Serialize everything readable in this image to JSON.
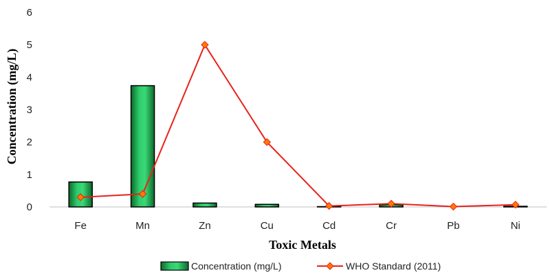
{
  "chart_data": {
    "type": "bar",
    "title": "",
    "xlabel": "Toxic  Metals",
    "ylabel": "Concentration (mg/L)",
    "categories": [
      "Fe",
      "Mn",
      "Zn",
      "Cu",
      "Cd",
      "Cr",
      "Pb",
      "Ni"
    ],
    "ylim": [
      0,
      6
    ],
    "yticks": [
      0,
      1,
      2,
      3,
      4,
      5,
      6
    ],
    "series": [
      {
        "name": "Concentration (mg/L)",
        "type": "bar",
        "color": "#1faa4f",
        "values": [
          0.77,
          3.74,
          0.12,
          0.08,
          0.01,
          0.07,
          0.0,
          0.02
        ]
      },
      {
        "name": "WHO Standard (2011)",
        "type": "line",
        "color": "#e8221b",
        "marker_color": "#ff7a00",
        "values": [
          0.3,
          0.4,
          5.0,
          2.0,
          0.03,
          0.1,
          0.01,
          0.07
        ]
      }
    ],
    "legend": "bottom",
    "grid": false
  }
}
